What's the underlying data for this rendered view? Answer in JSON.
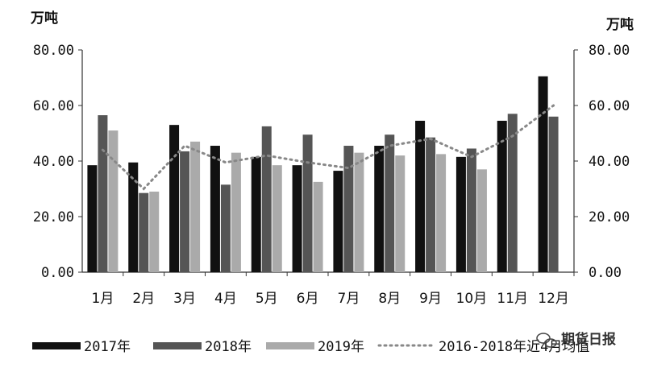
{
  "chart_data": {
    "type": "bar",
    "y_unit_left": "万吨",
    "y_unit_right": "万吨",
    "ylim": [
      0,
      80
    ],
    "yticks": [
      "0.00",
      "20.00",
      "40.00",
      "60.00",
      "80.00"
    ],
    "categories": [
      "1月",
      "2月",
      "3月",
      "4月",
      "5月",
      "6月",
      "7月",
      "8月",
      "9月",
      "10月",
      "11月",
      "12月"
    ],
    "series": [
      {
        "name": "2017年",
        "kind": "bar",
        "color": "#111111",
        "values": [
          38.5,
          39.5,
          53,
          45.5,
          41.5,
          38.5,
          36.5,
          45.5,
          54.5,
          41.5,
          54.5,
          70.5
        ]
      },
      {
        "name": "2018年",
        "kind": "bar",
        "color": "#555555",
        "values": [
          56.5,
          28.5,
          43.5,
          31.5,
          52.5,
          49.5,
          45.5,
          49.5,
          48.5,
          44.5,
          57,
          56
        ]
      },
      {
        "name": "2019年",
        "kind": "bar",
        "color": "#aaaaaa",
        "values": [
          51,
          29,
          47,
          43,
          38.5,
          32.5,
          43,
          42,
          42.5,
          37,
          null,
          null
        ]
      },
      {
        "name": "2016-2018年近4月均值",
        "kind": "line",
        "style": "dotted",
        "color": "#888888",
        "values": [
          44,
          30,
          45.5,
          39.5,
          42,
          39.5,
          37.5,
          45.5,
          48,
          41.5,
          49,
          60
        ]
      }
    ],
    "grid": false,
    "legend": "bottom"
  },
  "watermark": "期货日报"
}
